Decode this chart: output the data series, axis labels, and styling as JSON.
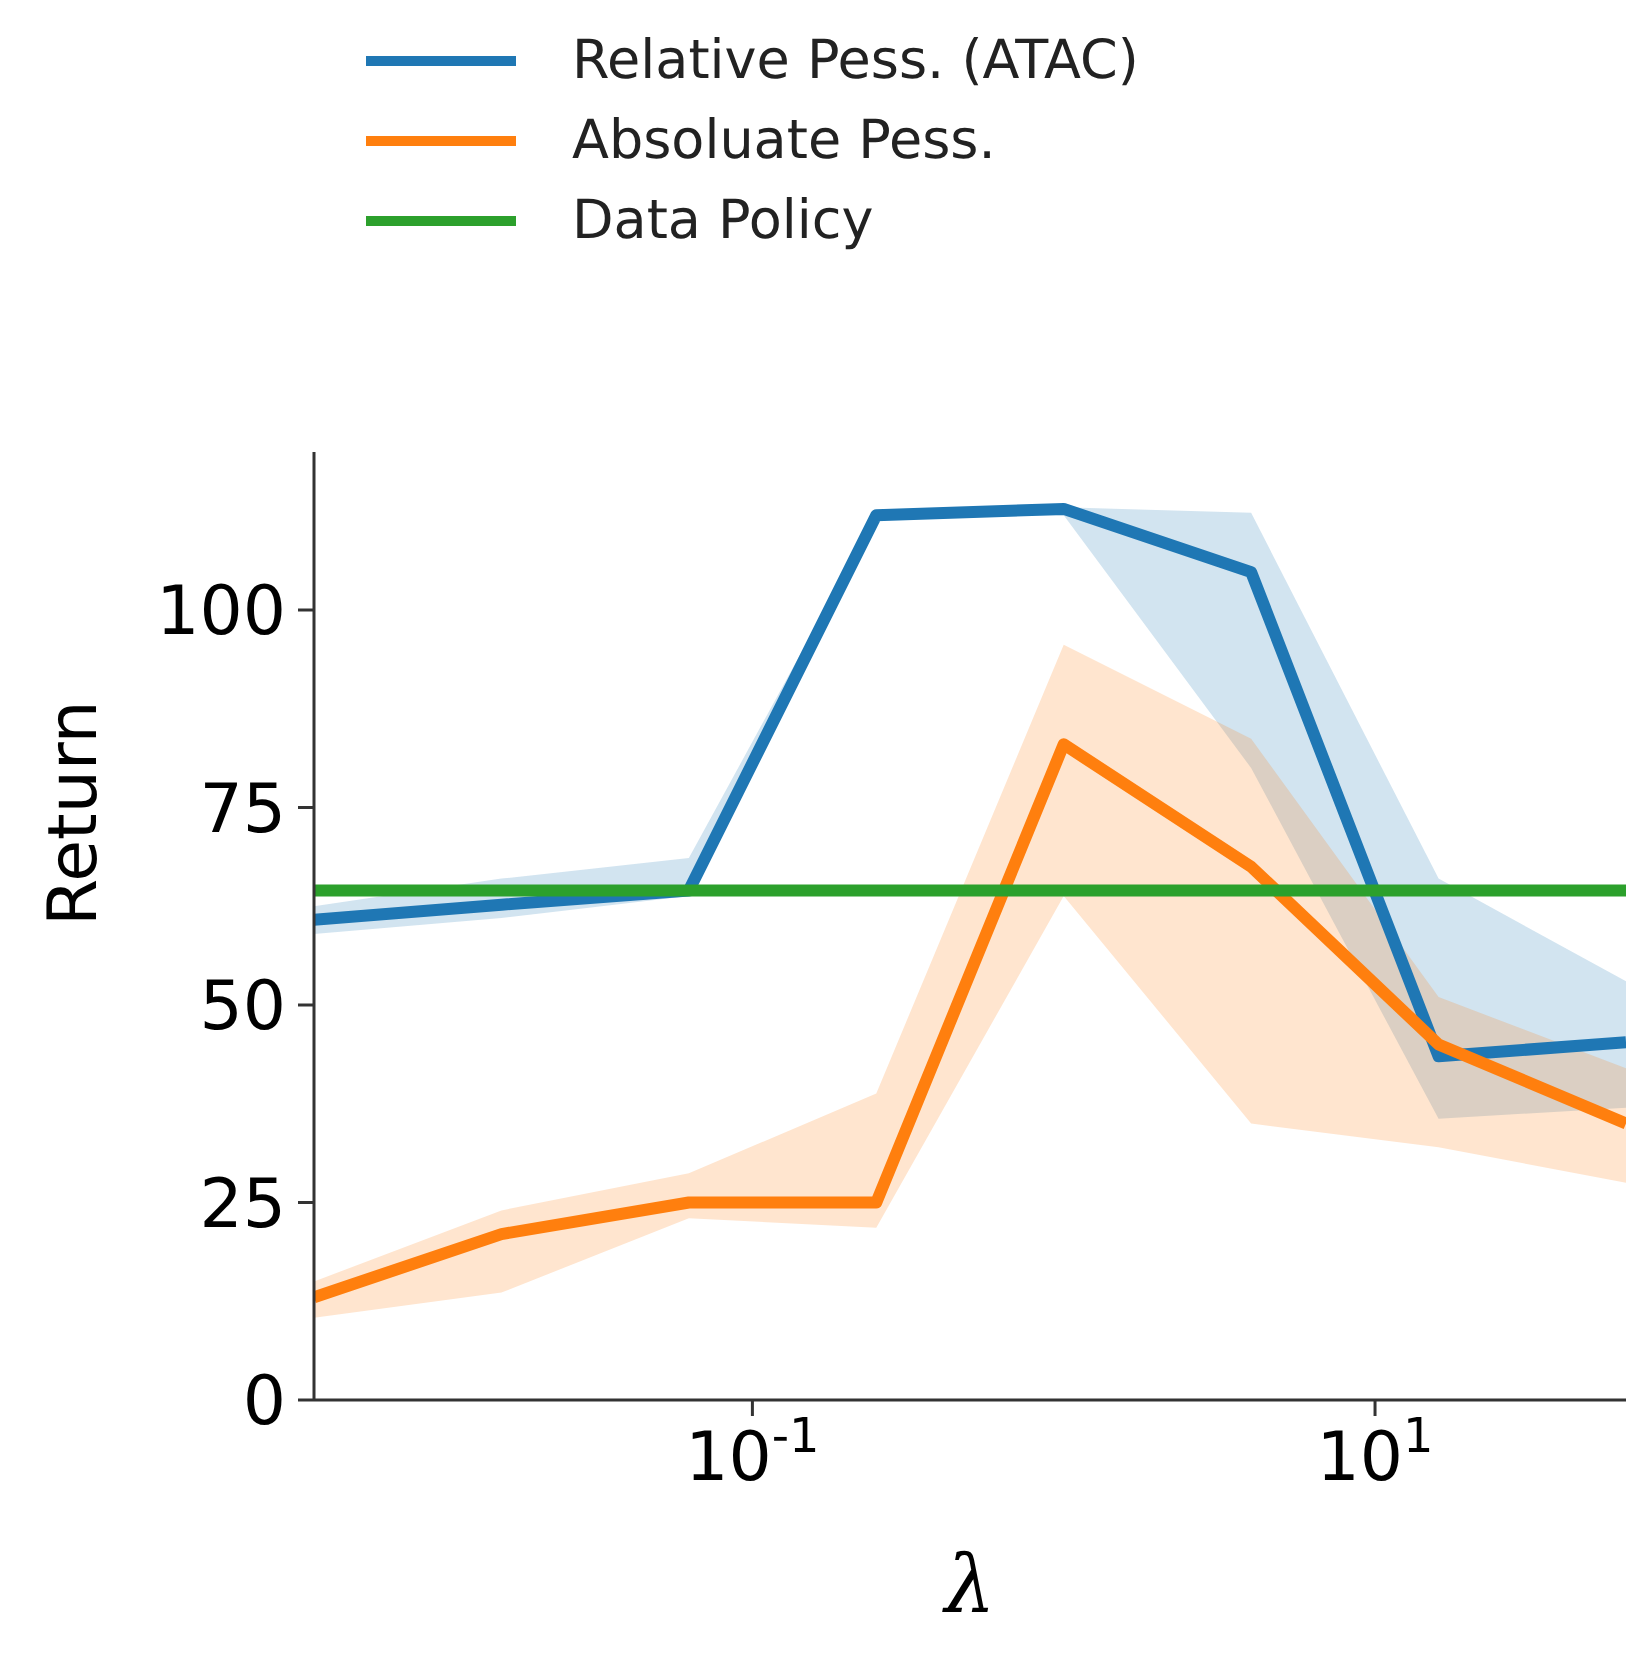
{
  "chart_data": {
    "type": "line",
    "xlabel": "λ",
    "ylabel": "Return",
    "log": "x",
    "x": [
      0.00390625,
      0.015625,
      0.0625,
      0.25,
      1,
      4,
      16,
      64
    ],
    "series": [
      {
        "name": "Relative Pess. (ATAC)",
        "color": "#1f77b4",
        "values": [
          60.8,
          62.7,
          64.5,
          112,
          112.8,
          104.8,
          43.5,
          45.3
        ],
        "lower": [
          59,
          61,
          63.8,
          112,
          112,
          80,
          35.6,
          37
        ],
        "upper": [
          62.5,
          66,
          68.6,
          112,
          113,
          112.3,
          66,
          53
        ]
      },
      {
        "name": "Absoluate Pess.",
        "color": "#ff7f0e",
        "values": [
          13,
          21,
          25,
          25,
          83,
          67.5,
          45,
          35
        ],
        "lower": [
          10.4,
          13.6,
          23,
          21.8,
          63.8,
          35,
          32,
          27.5
        ],
        "upper": [
          15,
          24,
          28.7,
          38.8,
          95.6,
          83.7,
          51,
          42
        ]
      },
      {
        "name": "Data Policy",
        "color": "#2ca02c",
        "values": [
          64.5,
          64.5,
          64.5,
          64.5,
          64.5,
          64.5,
          64.5,
          64.5
        ]
      }
    ],
    "xlim": [
      0.00390625,
      64
    ],
    "ylim": [
      0,
      120
    ],
    "xticks": [
      {
        "value": 0.1,
        "label": "10$^{-1}$"
      },
      {
        "value": 10,
        "label": "10$^{1}$"
      }
    ],
    "yticks": [
      0,
      25,
      50,
      75,
      100
    ],
    "legend": "top",
    "marker": "none",
    "line_style": "solid"
  }
}
